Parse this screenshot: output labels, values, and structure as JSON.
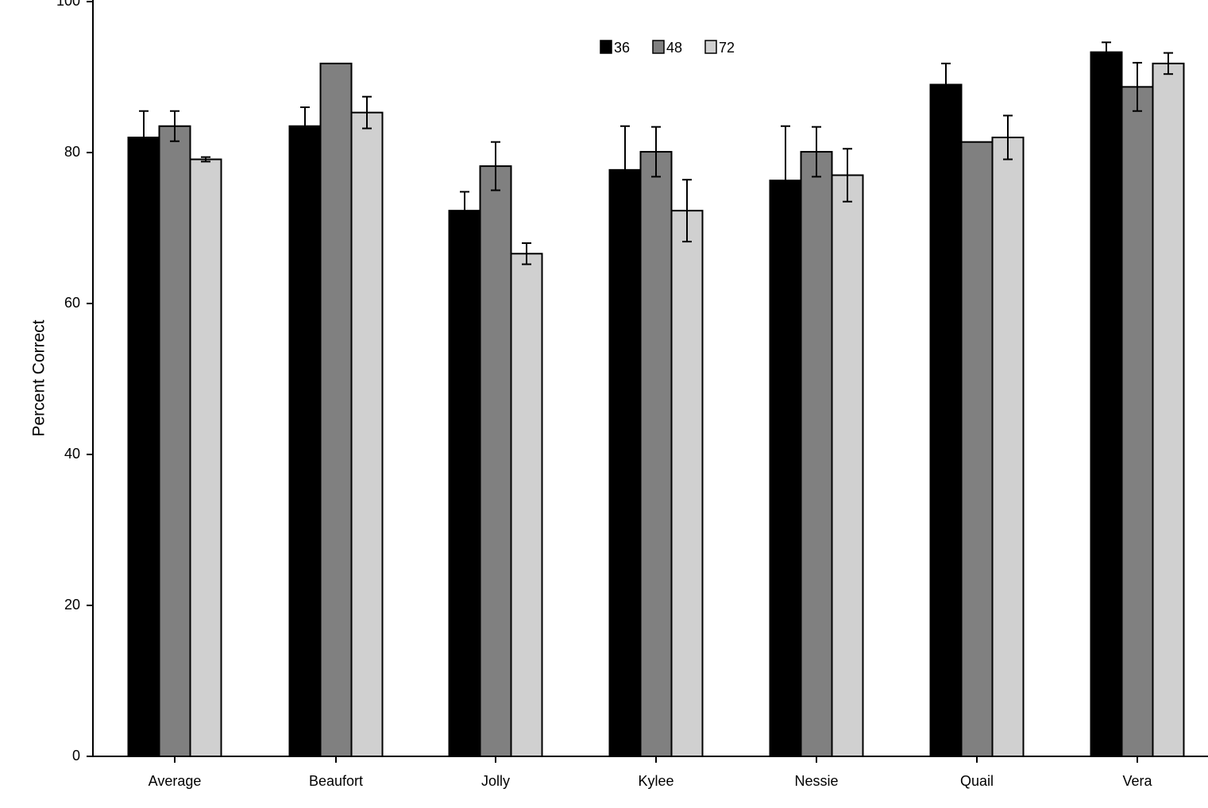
{
  "chart_data": {
    "type": "bar",
    "title": "",
    "xlabel": "",
    "ylabel": "Percent Correct",
    "ylim": [
      0,
      100
    ],
    "yticks": [
      0,
      20,
      40,
      60,
      80,
      100
    ],
    "grid": false,
    "legend_position": "top-center",
    "categories": [
      "Average",
      "Beaufort",
      "Jolly",
      "Kylee",
      "Nessie",
      "Quail",
      "Vera"
    ],
    "series": [
      {
        "name": "36",
        "color": "#000000",
        "values": [
          82.0,
          83.5,
          72.3,
          77.7,
          76.3,
          89.0,
          93.3
        ],
        "errors": [
          3.5,
          2.5,
          2.5,
          5.8,
          7.2,
          2.8,
          1.3
        ]
      },
      {
        "name": "48",
        "color": "#808080",
        "values": [
          83.5,
          91.8,
          78.2,
          80.1,
          80.1,
          81.4,
          88.7
        ],
        "errors": [
          2.0,
          null,
          3.2,
          3.3,
          3.3,
          null,
          3.2
        ]
      },
      {
        "name": "72",
        "color": "#d0d0d0",
        "values": [
          79.1,
          85.3,
          66.6,
          72.3,
          77.0,
          82.0,
          91.8
        ],
        "errors": [
          0.3,
          2.1,
          1.4,
          4.1,
          3.5,
          2.9,
          1.4
        ]
      }
    ]
  }
}
